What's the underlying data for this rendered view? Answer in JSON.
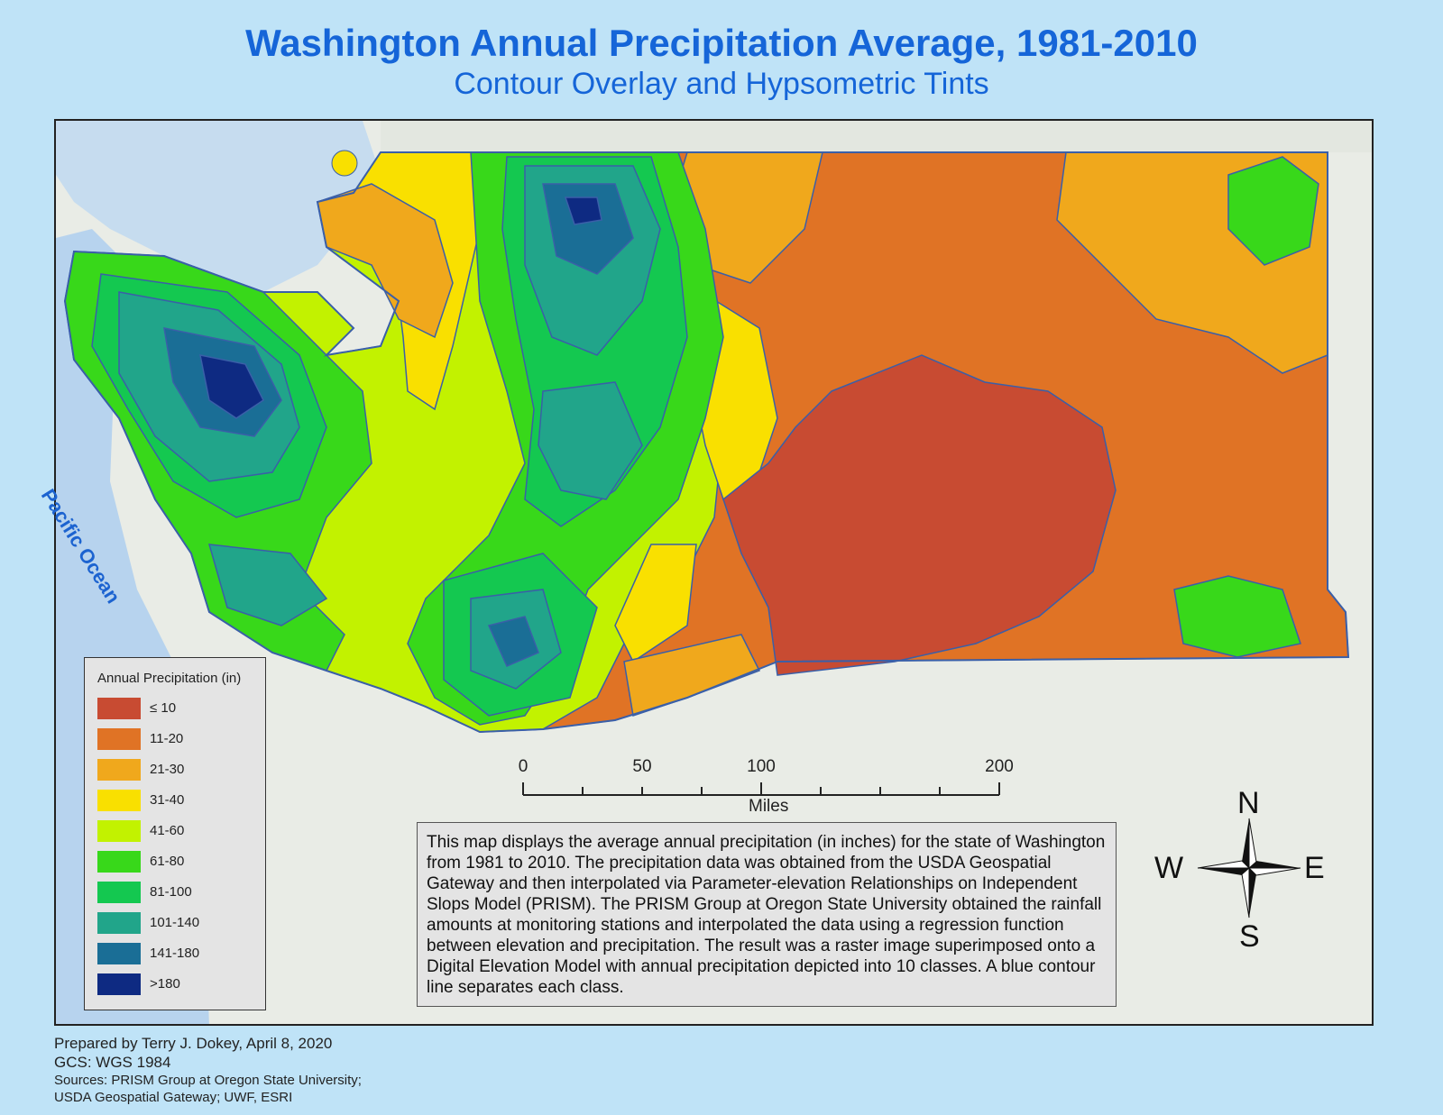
{
  "title": "Washington Annual Precipitation Average, 1981-2010",
  "subtitle": "Contour Overlay and Hypsometric Tints",
  "map_label": "Pacific Ocean",
  "legend": {
    "title": "Annual Precipitation (in)",
    "classes": [
      {
        "label": "≤ 10",
        "color": "#c84b32"
      },
      {
        "label": "11-20",
        "color": "#e07325"
      },
      {
        "label": "21-30",
        "color": "#f0a81c"
      },
      {
        "label": "31-40",
        "color": "#f9e000"
      },
      {
        "label": "41-60",
        "color": "#c2f200"
      },
      {
        "label": "61-80",
        "color": "#38d81a"
      },
      {
        "label": "81-100",
        "color": "#14c850"
      },
      {
        "label": "101-140",
        "color": "#21a58a"
      },
      {
        "label": "141-180",
        "color": "#1a6e96"
      },
      {
        "label": ">180",
        "color": "#0e2a82"
      }
    ]
  },
  "scale_bar": {
    "ticks": [
      "0",
      "50",
      "100",
      "200"
    ],
    "unit": "Miles"
  },
  "compass": {
    "north": "N",
    "south": "S",
    "east": "E",
    "west": "W"
  },
  "description": "This map displays the average annual precipitation (in inches) for the state of Washington from 1981 to 2010. The precipitation data was obtained from the USDA Geospatial Gateway and then interpolated via Parameter-elevation Relationships on Independent Slops Model (PRISM). The PRISM Group at Oregon State University obtained the rainfall amounts at monitoring stations and interpolated the data using a regression function between elevation and precipitation. The result was a raster image superimposed onto a Digital Elevation Model with annual precipitation depicted into 10 classes. A blue contour line separates each class.",
  "credits": {
    "prepared_by": "Prepared by Terry J. Dokey, April 8, 2020",
    "gcs": "GCS: WGS 1984",
    "sources_line1": "Sources: PRISM Group at Oregon State University;",
    "sources_line2": "USDA Geospatial Gateway; UWF, ESRI"
  },
  "colors": {
    "title": "#1565d8",
    "contour": "#3a5fa8",
    "water": "#b7d3ee",
    "land": "#e9ece6"
  }
}
